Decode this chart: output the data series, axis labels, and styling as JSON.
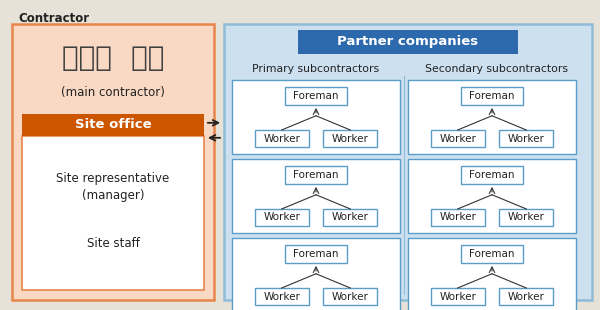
{
  "bg_color": "#e6e2d8",
  "title_contractor": "Contractor",
  "title_partner": "Partner companies",
  "sub1_label": "Primary subcontractors",
  "sub2_label": "Secondary subcontractors",
  "kajima_logo": "カジマ 鹿島",
  "kajima_sub": "(main contractor)",
  "site_office_label": "Site office",
  "site_rep": "Site representative\n(manager)",
  "site_staff": "Site staff",
  "contractor_box_facecolor": "#fad9c4",
  "contractor_box_edgecolor": "#e8854a",
  "partner_box_facecolor": "#cce0f0",
  "partner_box_edgecolor": "#90bcd8",
  "site_office_bg": "#cc5500",
  "site_office_text": "#ffffff",
  "site_inner_bg": "#ffffff",
  "site_inner_edge": "#e8854a",
  "group_box_bg": "#ffffff",
  "group_box_edge": "#5a9ec8",
  "foreman_box_edge": "#5a9ec8",
  "worker_box_edge": "#5a9ec8",
  "partner_header_bg": "#2d6aad",
  "partner_header_text": "#ffffff",
  "arrow_color": "#222222",
  "text_color": "#222222",
  "kajima_color": "#404040"
}
